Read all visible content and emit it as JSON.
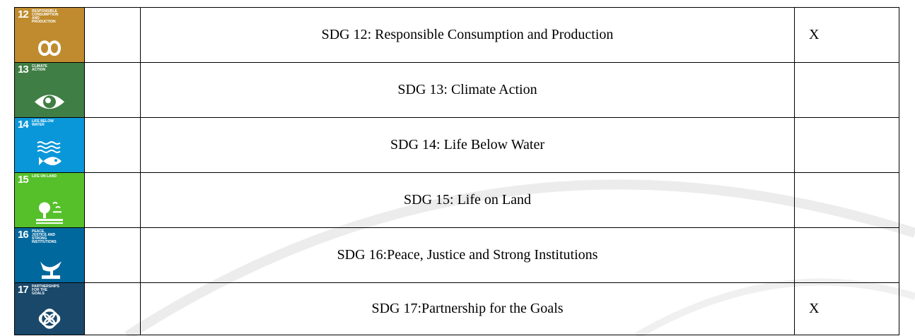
{
  "table": {
    "rows": [
      {
        "icon_number": "12",
        "icon_label": "RESPONSIBLE CONSUMPTION AND PRODUCTION",
        "color": "#bf8b2e",
        "goal": "SDG 12: Responsible Consumption and Production",
        "mark": "X"
      },
      {
        "icon_number": "13",
        "icon_label": "CLIMATE ACTION",
        "color": "#3f7e44",
        "goal": "SDG 13: Climate Action"
      },
      {
        "icon_number": "14",
        "icon_label": "LIFE BELOW WATER",
        "color": "#0a97d9",
        "goal": "SDG 14: Life Below Water"
      },
      {
        "icon_number": "15",
        "icon_label": "LIFE ON LAND",
        "color": "#56c02b",
        "goal": "SDG 15: Life on Land"
      },
      {
        "icon_number": "16",
        "icon_label": "PEACE, JUSTICE AND STRONG INSTITUTIONS",
        "color": "#00689d",
        "goal": "SDG 16:Peace, Justice and Strong Institutions"
      },
      {
        "icon_number": "17",
        "icon_label": "PARTNERSHIPS FOR THE GOALS",
        "color": "#19486a",
        "goal": "SDG 17:Partnership for the Goals",
        "mark": "X"
      }
    ]
  }
}
